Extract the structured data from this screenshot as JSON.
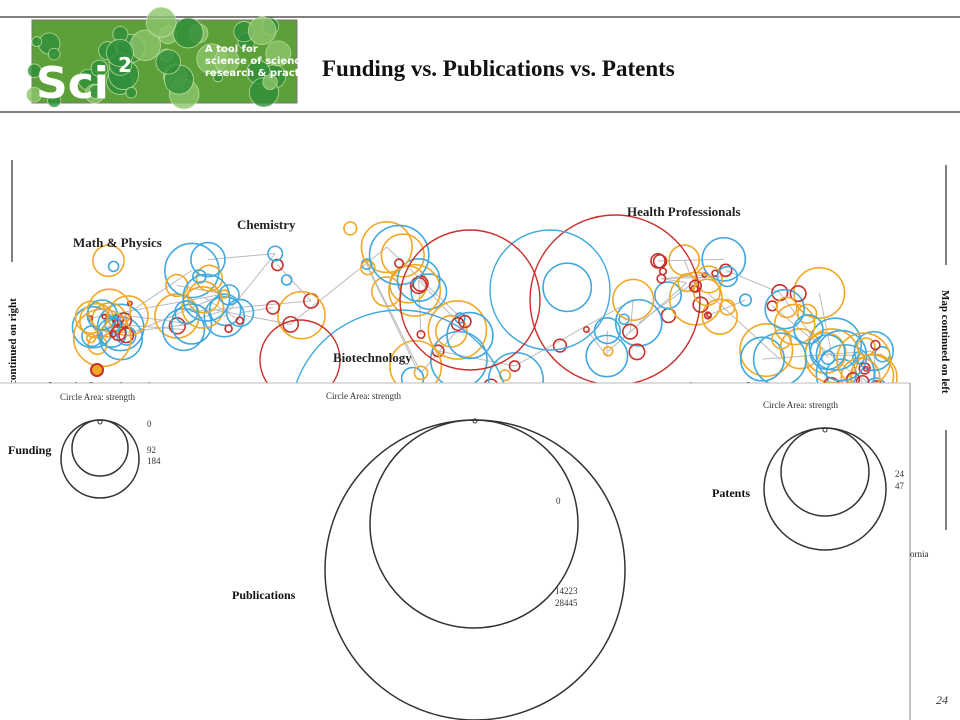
{
  "header": {
    "title": "Funding vs. Publications vs. Patents"
  },
  "logo": {
    "name": "Sci",
    "superscript": "2",
    "tagline": [
      "A tool for",
      "science of science",
      "research & practice"
    ]
  },
  "map": {
    "labels": [
      "Math & Physics",
      "Chemistry",
      "Health Professionals",
      "Biotechnology",
      "Electrical Engineering",
      "Brain Research",
      "ornia"
    ],
    "left_note": "continued on right",
    "right_note": "Map continued on left"
  },
  "legend": {
    "funding": {
      "caption": "Circle Area: strength",
      "name": "Funding",
      "labels": [
        "0",
        "92",
        "184"
      ]
    },
    "publications": {
      "caption": "Circle Area: strength",
      "name": "Publications",
      "labels": [
        "0",
        "14223",
        "28445"
      ]
    },
    "patents": {
      "caption": "Circle Area: strength",
      "name": "Patents",
      "labels": [
        "24",
        "47"
      ]
    }
  },
  "footer": {
    "page": "24"
  }
}
